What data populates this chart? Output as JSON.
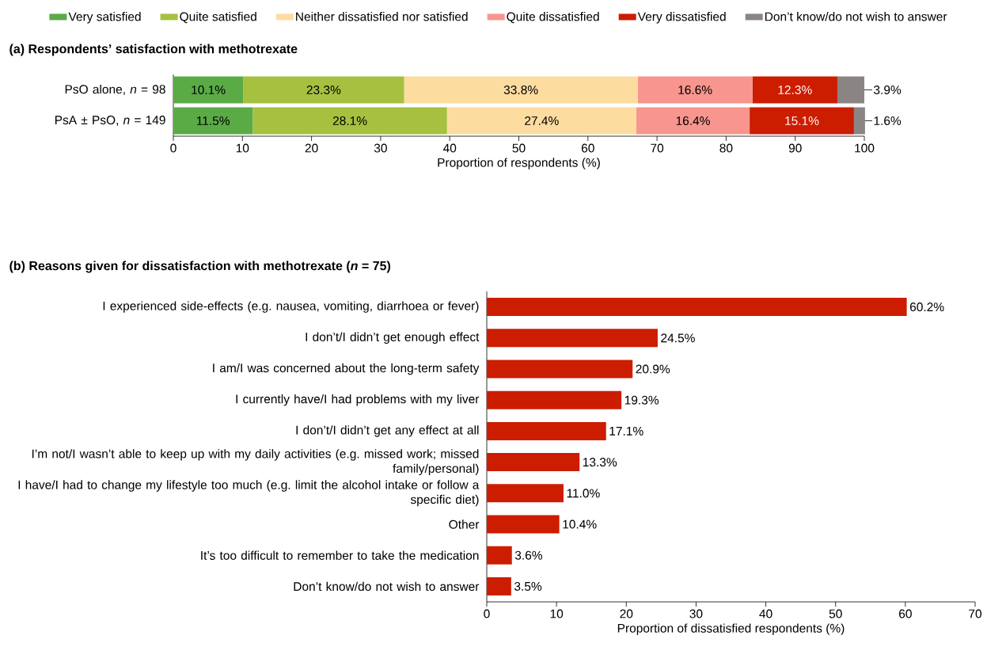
{
  "chart_data": [
    {
      "type": "bar",
      "orientation": "horizontal",
      "stacked": true,
      "legend": "top",
      "title": "(a) Respondents’ satisfaction with methotrexate",
      "xlabel": "Proportion of respondents (%)",
      "categories": [
        "PsO alone, *n* = 98",
        "PsA ± PsO, *n* = 149"
      ],
      "xlim": [
        0,
        100
      ],
      "xticks": [
        0,
        10,
        20,
        30,
        40,
        50,
        60,
        70,
        80,
        90,
        100
      ],
      "series": [
        {
          "name": "Very satisfied",
          "color": "#5aab46",
          "values": [
            10.1,
            11.5
          ],
          "value_labels": [
            "10.1%",
            "11.5%"
          ]
        },
        {
          "name": "Quite satisfied",
          "color": "#a5c13f",
          "values": [
            23.3,
            28.1
          ],
          "value_labels": [
            "23.3%",
            "28.1%"
          ]
        },
        {
          "name": "Neither dissatisfied nor satisfied",
          "color": "#fddca0",
          "values": [
            33.8,
            27.4
          ],
          "value_labels": [
            "33.8%",
            "27.4%"
          ]
        },
        {
          "name": "Quite dissatisfied",
          "color": "#f7958e",
          "values": [
            16.6,
            16.4
          ],
          "value_labels": [
            "16.6%",
            "16.4%"
          ]
        },
        {
          "name": "Very dissatisfied",
          "color": "#cc1d00",
          "values": [
            12.3,
            15.1
          ],
          "value_labels": [
            "12.3%",
            "15.1%"
          ]
        },
        {
          "name": "Don’t know/do not wish to answer",
          "color": "#8a8584",
          "values": [
            3.9,
            1.6
          ],
          "value_labels": [
            "3.9%",
            "1.6%"
          ]
        }
      ]
    },
    {
      "type": "bar",
      "orientation": "horizontal",
      "title": "(b) Reasons given for dissatisfaction with methotrexate (*n* = 75)",
      "xlabel": "Proportion of dissatisfied respondents (%)",
      "categories": [
        "I experienced side-effects (e.g. nausea, vomiting, diarrhoea or fever)",
        "I don’t/I didn’t get enough effect",
        "I am/I was concerned about the long-term safety",
        "I currently have/I had problems with my liver",
        "I don’t/I didn’t get any effect at all",
        "I’m not/I wasn’t able to keep up with my daily activities (e.g. missed work; missed family/personal)",
        "I have/I had to change my lifestyle too much (e.g. limit the alcohol intake or follow a specific diet)",
        "Other",
        "It’s too difficult to remember to take the medication",
        "Don’t know/do not wish to answer"
      ],
      "xlim": [
        0,
        70
      ],
      "xticks": [
        0,
        10,
        20,
        30,
        40,
        50,
        60,
        70
      ],
      "color": "#cc1d00",
      "values": [
        60.2,
        24.5,
        20.9,
        19.3,
        17.1,
        13.3,
        11.0,
        10.4,
        3.6,
        3.5
      ],
      "value_labels": [
        "60.2%",
        "24.5%",
        "20.9%",
        "19.3%",
        "17.1%",
        "13.3%",
        "11.0%",
        "10.4%",
        "3.6%",
        "3.5%"
      ]
    }
  ]
}
